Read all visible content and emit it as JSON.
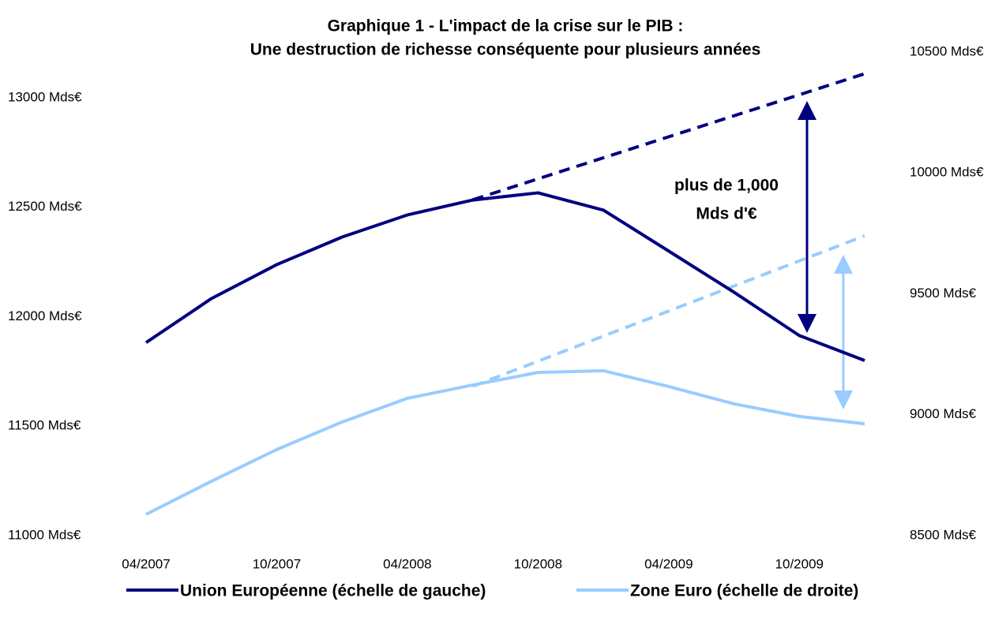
{
  "chart_data": {
    "type": "line",
    "title": [
      "Graphique 1 - L'impact de la crise sur le PIB :",
      "Une destruction de richesse conséquente pour plusieurs années"
    ],
    "categories": [
      "04/2007",
      null,
      "10/2007",
      null,
      "04/2008",
      null,
      "10/2008",
      null,
      "04/2009",
      null,
      "10/2009",
      null
    ],
    "series": [
      {
        "name": "Union Européenne (échelle de gauche)",
        "color": "#000080",
        "axis": "y",
        "values": [
          11882,
          12083,
          12238,
          12364,
          12465,
          12533,
          12566,
          12487,
          12300,
          12112,
          11914,
          11800
        ]
      },
      {
        "name": "Zone Euro (échelle de droite)",
        "color": "#99ccff",
        "axis": "y2",
        "values": [
          8588,
          8725,
          8856,
          8970,
          9068,
          9123,
          9175,
          9182,
          9117,
          9045,
          8993,
          8963
        ]
      }
    ],
    "trends": [
      {
        "color": "#000080",
        "axis": "y",
        "values": [
          null,
          null,
          null,
          null,
          null,
          12534,
          null,
          null,
          null,
          null,
          null,
          13110
        ]
      },
      {
        "color": "#99ccff",
        "axis": "y2",
        "values": [
          null,
          null,
          null,
          null,
          null,
          9118,
          null,
          null,
          null,
          null,
          null,
          9740
        ]
      }
    ],
    "annotation": [
      "plus de 1,000",
      "Mds d'€"
    ],
    "ylim": [
      11000,
      13000
    ],
    "yticks": [
      {
        "value": 11000,
        "label": "11000 Mds€"
      },
      {
        "value": 11500,
        "label": "11500 Mds€"
      },
      {
        "value": 12000,
        "label": "12000 Mds€"
      },
      {
        "value": 12500,
        "label": "12500 Mds€"
      },
      {
        "value": 13000,
        "label": "13000 Mds€"
      }
    ],
    "y2lim": [
      8500,
      10500
    ],
    "y2ticks": [
      {
        "value": 8500,
        "label": "8500 Mds€"
      },
      {
        "value": 9000,
        "label": "9000 Mds€"
      },
      {
        "value": 9500,
        "label": "9500 Mds€"
      },
      {
        "value": 10000,
        "label": "10000 Mds€"
      },
      {
        "value": 10500,
        "label": "10500 Mds€"
      }
    ],
    "grid": false,
    "legend": "bottom"
  }
}
